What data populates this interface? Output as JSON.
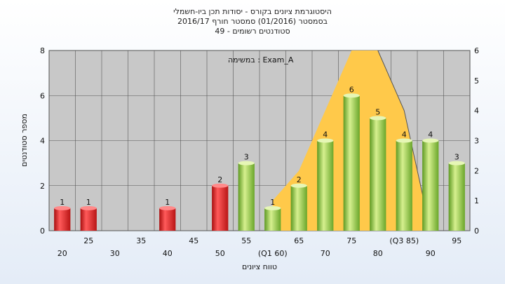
{
  "chart_data": {
    "type": "bar",
    "title_lines": [
      "היסטוגרמת ציונים בקורס - יסודות תכן ביו-חשמלי",
      "בסמסטר  (01/2016)  סמסטר חורף 2016/17",
      "סטודנטים רשומים - 49"
    ],
    "annotation": "במשימה : Exam_A",
    "xlabel": "טווח ציונים",
    "ylabel": "מספר סטודנטים",
    "ylim": [
      0,
      8
    ],
    "y2lim": [
      0,
      6
    ],
    "yticks": [
      0,
      2,
      4,
      6,
      8
    ],
    "y2ticks": [
      0,
      1,
      2,
      3,
      4,
      5,
      6
    ],
    "grid": true,
    "categories": [
      {
        "label": "20",
        "value": 1,
        "color": "red"
      },
      {
        "label": "25",
        "value": 1,
        "color": "red"
      },
      {
        "label": "30",
        "value": 0,
        "color": "red"
      },
      {
        "label": "35",
        "value": 0,
        "color": "red"
      },
      {
        "label": "40",
        "value": 1,
        "color": "red"
      },
      {
        "label": "45",
        "value": 0,
        "color": "red"
      },
      {
        "label": "50",
        "value": 2,
        "color": "red"
      },
      {
        "label": "55",
        "value": 3,
        "color": "green"
      },
      {
        "label": "(Q1 60)",
        "value": 1,
        "color": "green"
      },
      {
        "label": "65",
        "value": 2,
        "color": "green"
      },
      {
        "label": "70",
        "value": 4,
        "color": "green"
      },
      {
        "label": "75",
        "value": 6,
        "color": "green"
      },
      {
        "label": "80",
        "value": 5,
        "color": "green"
      },
      {
        "label": "(Q3 85)",
        "value": 4,
        "color": "green"
      },
      {
        "label": "90",
        "value": 4,
        "color": "green"
      },
      {
        "label": "95",
        "value": 3,
        "color": "green"
      }
    ],
    "area_series": {
      "x_categories": [
        "(Q1 60)",
        "65",
        "70",
        "75",
        "80",
        "(Q3 85)",
        "90"
      ],
      "values": [
        1,
        2,
        4,
        6,
        6,
        4,
        0
      ]
    },
    "colors": {
      "red": "#e02020",
      "green": "#8cc63e",
      "area": "#ffc94a",
      "plot_bg": "#c8c8c8"
    }
  }
}
